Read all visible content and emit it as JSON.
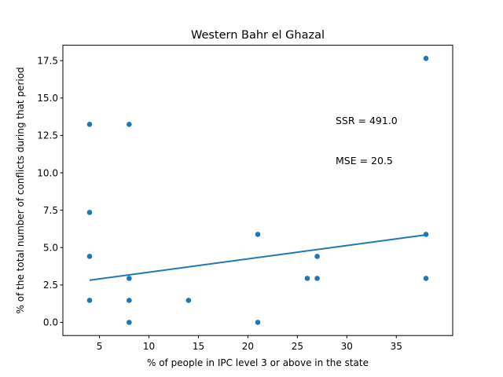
{
  "chart_data": {
    "type": "scatter",
    "title": "Western Bahr el Ghazal",
    "xlabel": "% of people in IPC level 3 or above in the state",
    "ylabel": "% of the total number of conflicts during that period",
    "xlim": [
      1.3,
      40.7
    ],
    "ylim": [
      -0.88,
      18.53
    ],
    "xticks": [
      5,
      10,
      15,
      20,
      25,
      30,
      35
    ],
    "yticks": [
      0.0,
      2.5,
      5.0,
      7.5,
      10.0,
      12.5,
      15.0,
      17.5
    ],
    "xtick_labels": [
      "5",
      "10",
      "15",
      "20",
      "25",
      "30",
      "35"
    ],
    "ytick_labels": [
      "0.0",
      "2.5",
      "5.0",
      "7.5",
      "10.0",
      "12.5",
      "15.0",
      "17.5"
    ],
    "grid": false,
    "points": [
      {
        "x": 4,
        "y": 13.24
      },
      {
        "x": 4,
        "y": 7.35
      },
      {
        "x": 4,
        "y": 4.41
      },
      {
        "x": 4,
        "y": 1.47
      },
      {
        "x": 8,
        "y": 13.24
      },
      {
        "x": 8,
        "y": 2.94
      },
      {
        "x": 8,
        "y": 1.47
      },
      {
        "x": 8,
        "y": 0.0
      },
      {
        "x": 14,
        "y": 1.47
      },
      {
        "x": 21,
        "y": 5.88
      },
      {
        "x": 21,
        "y": 0.0
      },
      {
        "x": 26,
        "y": 2.94
      },
      {
        "x": 27,
        "y": 4.41
      },
      {
        "x": 27,
        "y": 2.94
      },
      {
        "x": 38,
        "y": 17.65
      },
      {
        "x": 38,
        "y": 5.88
      },
      {
        "x": 38,
        "y": 2.94
      }
    ],
    "fit_line": {
      "x": [
        4,
        38
      ],
      "y": [
        2.82,
        5.85
      ]
    },
    "colors": {
      "marker": "#1f77b4",
      "line": "#1f77b4"
    },
    "annotations": [
      "SSR = 491.0",
      "MSE = 20.5"
    ]
  }
}
